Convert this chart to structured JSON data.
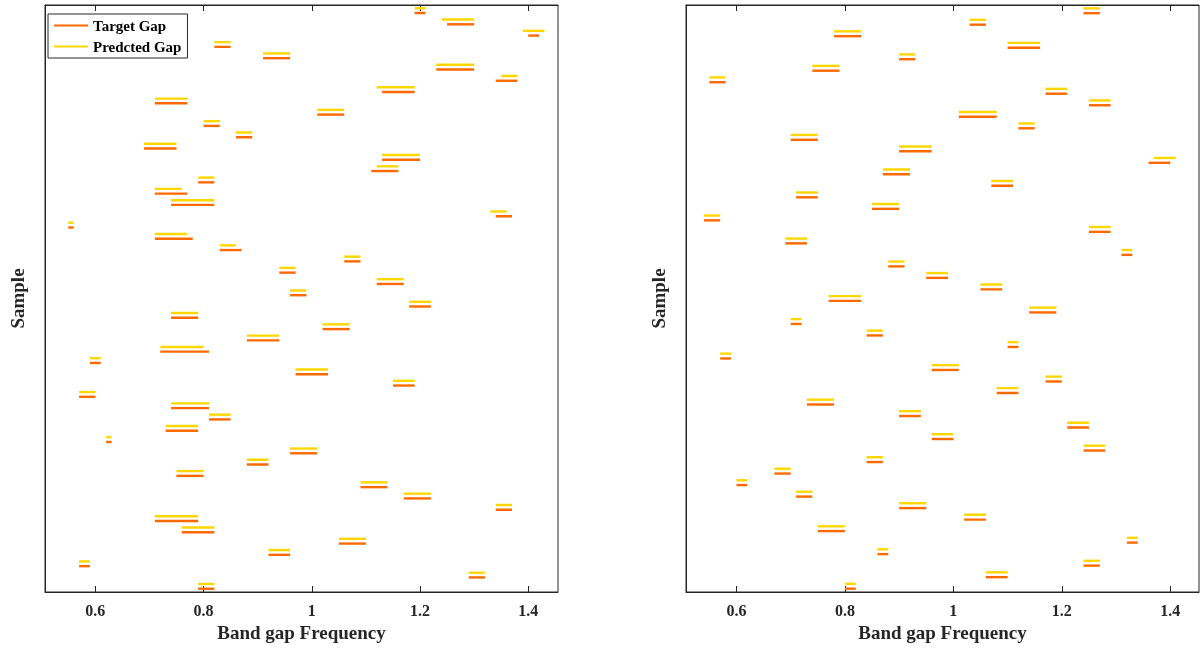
{
  "chart_data": [
    {
      "type": "bar",
      "orientation": "horizontal",
      "xlabel": "Band gap Frequency",
      "ylabel": "Sample",
      "xlim": [
        0.507,
        1.455
      ],
      "xticks": [
        0.6,
        0.8,
        1,
        1.2,
        1.4
      ],
      "tick_labels": "x",
      "legend": "top left",
      "categories": [
        null,
        null,
        null,
        null,
        null,
        null,
        null,
        null,
        null,
        null,
        null,
        null,
        null,
        null,
        null,
        null,
        null,
        null,
        null,
        null,
        null,
        null,
        null,
        null,
        null,
        null,
        null,
        null,
        null,
        null,
        null,
        null,
        null,
        null,
        null,
        null,
        null,
        null,
        null,
        null,
        null,
        null,
        null,
        null,
        null,
        null,
        null,
        null,
        null,
        null,
        null,
        null
      ],
      "series": [
        {
          "name": "Target Gap",
          "color": "#ff6a00",
          "base": [
            1.19,
            1.25,
            1.4,
            0.82,
            0.91,
            1.23,
            1.34,
            1.13,
            0.71,
            1.01,
            0.8,
            0.86,
            0.69,
            1.13,
            1.11,
            0.79,
            0.71,
            0.74,
            1.34,
            0.55,
            0.71,
            0.83,
            1.06,
            0.94,
            1.12,
            0.96,
            1.18,
            0.74,
            1.02,
            0.88,
            0.72,
            0.59,
            0.97,
            1.15,
            0.57,
            0.74,
            0.81,
            0.73,
            0.62,
            0.96,
            0.88,
            0.75,
            1.09,
            1.17,
            1.34,
            0.71,
            0.76,
            1.05,
            0.92,
            0.57,
            1.29,
            0.79
          ],
          "values": [
            0.02,
            0.05,
            0.02,
            0.03,
            0.05,
            0.07,
            0.04,
            0.06,
            0.06,
            0.05,
            0.03,
            0.03,
            0.06,
            0.07,
            0.05,
            0.03,
            0.06,
            0.08,
            0.03,
            0.01,
            0.07,
            0.04,
            0.03,
            0.03,
            0.05,
            0.03,
            0.04,
            0.05,
            0.05,
            0.06,
            0.09,
            0.02,
            0.06,
            0.04,
            0.03,
            0.07,
            0.04,
            0.06,
            0.01,
            0.05,
            0.04,
            0.05,
            0.05,
            0.05,
            0.03,
            0.08,
            0.06,
            0.05,
            0.04,
            0.02,
            0.03,
            0.03
          ]
        },
        {
          "name": "Predcted Gap",
          "color": "#ffd700",
          "base": [
            1.19,
            1.24,
            1.39,
            0.82,
            0.91,
            1.23,
            1.35,
            1.12,
            0.71,
            1.01,
            0.8,
            0.86,
            0.69,
            1.13,
            1.12,
            0.79,
            0.71,
            0.74,
            1.33,
            0.55,
            0.71,
            0.83,
            1.06,
            0.94,
            1.12,
            0.96,
            1.18,
            0.74,
            1.02,
            0.88,
            0.72,
            0.59,
            0.97,
            1.15,
            0.57,
            0.74,
            0.81,
            0.73,
            0.62,
            0.96,
            0.88,
            0.75,
            1.09,
            1.17,
            1.34,
            0.71,
            0.76,
            1.05,
            0.92,
            0.57,
            1.29,
            0.79
          ],
          "values": [
            0.02,
            0.06,
            0.04,
            0.03,
            0.05,
            0.07,
            0.03,
            0.07,
            0.06,
            0.05,
            0.03,
            0.03,
            0.06,
            0.07,
            0.04,
            0.03,
            0.05,
            0.08,
            0.03,
            0.01,
            0.06,
            0.03,
            0.03,
            0.03,
            0.05,
            0.03,
            0.04,
            0.05,
            0.05,
            0.06,
            0.08,
            0.02,
            0.06,
            0.04,
            0.03,
            0.07,
            0.04,
            0.06,
            0.01,
            0.05,
            0.04,
            0.05,
            0.05,
            0.05,
            0.03,
            0.08,
            0.06,
            0.05,
            0.04,
            0.02,
            0.03,
            0.03
          ]
        }
      ]
    },
    {
      "type": "bar",
      "orientation": "horizontal",
      "xlabel": "Band gap Frequency",
      "ylabel": "Sample",
      "xlim": [
        0.507,
        1.453
      ],
      "xticks": [
        0.6,
        0.8,
        1,
        1.2,
        1.4
      ],
      "tick_labels": "x",
      "categories": [
        null,
        null,
        null,
        null,
        null,
        null,
        null,
        null,
        null,
        null,
        null,
        null,
        null,
        null,
        null,
        null,
        null,
        null,
        null,
        null,
        null,
        null,
        null,
        null,
        null,
        null,
        null,
        null,
        null,
        null,
        null,
        null,
        null,
        null,
        null,
        null,
        null,
        null,
        null,
        null,
        null,
        null,
        null,
        null,
        null,
        null,
        null,
        null,
        null,
        null,
        null
      ],
      "series": [
        {
          "color": "#ff6a00",
          "base": [
            1.24,
            1.03,
            0.78,
            1.1,
            0.9,
            0.74,
            0.55,
            1.17,
            1.25,
            1.01,
            1.12,
            0.7,
            0.9,
            1.36,
            0.87,
            1.07,
            0.71,
            0.85,
            0.54,
            1.25,
            0.69,
            1.31,
            0.88,
            0.95,
            1.05,
            0.77,
            1.14,
            0.7,
            0.84,
            1.1,
            0.57,
            0.96,
            1.17,
            1.08,
            0.73,
            0.9,
            1.21,
            0.96,
            1.24,
            0.84,
            0.67,
            0.6,
            0.71,
            0.9,
            1.02,
            0.75,
            1.32,
            0.86,
            1.24,
            1.06,
            0.8
          ],
          "values": [
            0.03,
            0.03,
            0.05,
            0.06,
            0.03,
            0.05,
            0.03,
            0.04,
            0.04,
            0.07,
            0.03,
            0.05,
            0.06,
            0.04,
            0.05,
            0.04,
            0.04,
            0.05,
            0.03,
            0.04,
            0.04,
            0.02,
            0.03,
            0.04,
            0.04,
            0.06,
            0.05,
            0.02,
            0.03,
            0.02,
            0.02,
            0.05,
            0.03,
            0.04,
            0.05,
            0.04,
            0.04,
            0.04,
            0.04,
            0.03,
            0.03,
            0.02,
            0.03,
            0.05,
            0.04,
            0.05,
            0.02,
            0.02,
            0.03,
            0.04,
            0.02
          ]
        },
        {
          "color": "#ffd700",
          "base": [
            1.24,
            1.03,
            0.78,
            1.1,
            0.9,
            0.74,
            0.55,
            1.17,
            1.25,
            1.01,
            1.12,
            0.7,
            0.9,
            1.37,
            0.87,
            1.07,
            0.71,
            0.85,
            0.54,
            1.25,
            0.69,
            1.31,
            0.88,
            0.95,
            1.05,
            0.77,
            1.14,
            0.7,
            0.84,
            1.1,
            0.57,
            0.96,
            1.17,
            1.08,
            0.73,
            0.9,
            1.21,
            0.96,
            1.24,
            0.84,
            0.67,
            0.6,
            0.71,
            0.9,
            1.02,
            0.75,
            1.32,
            0.86,
            1.24,
            1.06,
            0.8
          ],
          "values": [
            0.03,
            0.03,
            0.05,
            0.06,
            0.03,
            0.05,
            0.03,
            0.04,
            0.04,
            0.07,
            0.03,
            0.05,
            0.06,
            0.04,
            0.05,
            0.04,
            0.04,
            0.05,
            0.03,
            0.04,
            0.04,
            0.02,
            0.03,
            0.04,
            0.04,
            0.06,
            0.05,
            0.02,
            0.03,
            0.02,
            0.02,
            0.05,
            0.03,
            0.04,
            0.05,
            0.04,
            0.04,
            0.04,
            0.04,
            0.03,
            0.03,
            0.02,
            0.03,
            0.05,
            0.04,
            0.05,
            0.02,
            0.02,
            0.03,
            0.04,
            0.02
          ]
        }
      ]
    }
  ]
}
